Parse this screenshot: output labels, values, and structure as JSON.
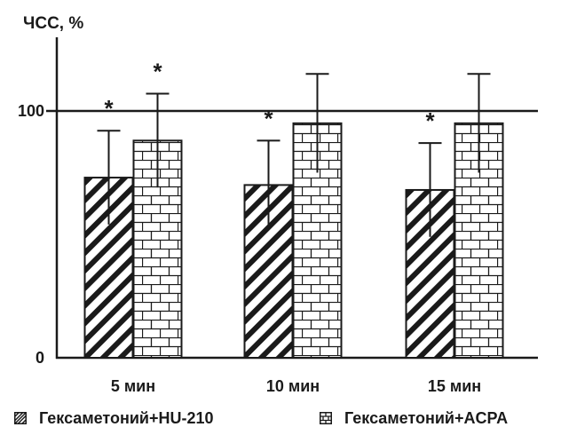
{
  "chart_data": {
    "type": "bar",
    "ylabel": "ЧСС, %",
    "ylim": [
      0,
      125
    ],
    "yticks": [
      {
        "value": 0,
        "label": "0"
      },
      {
        "value": 100,
        "label": "100"
      }
    ],
    "reference_line": 100,
    "categories": [
      "5 мин",
      "10 мин",
      "15 мин"
    ],
    "series": [
      {
        "name": "Гексаметоний+HU-210",
        "values": [
          73,
          70,
          68
        ],
        "error": [
          19,
          18,
          19
        ],
        "significance": [
          "*",
          "*",
          "*"
        ],
        "pattern": "diagonal-hatch"
      },
      {
        "name": "Гексаметоний+ACPA",
        "values": [
          88,
          95,
          95
        ],
        "error": [
          19,
          20,
          20
        ],
        "significance": [
          "*",
          "",
          ""
        ],
        "pattern": "brick"
      }
    ],
    "colors": {
      "ink": "#1a1a1a",
      "background": "#ffffff"
    }
  }
}
